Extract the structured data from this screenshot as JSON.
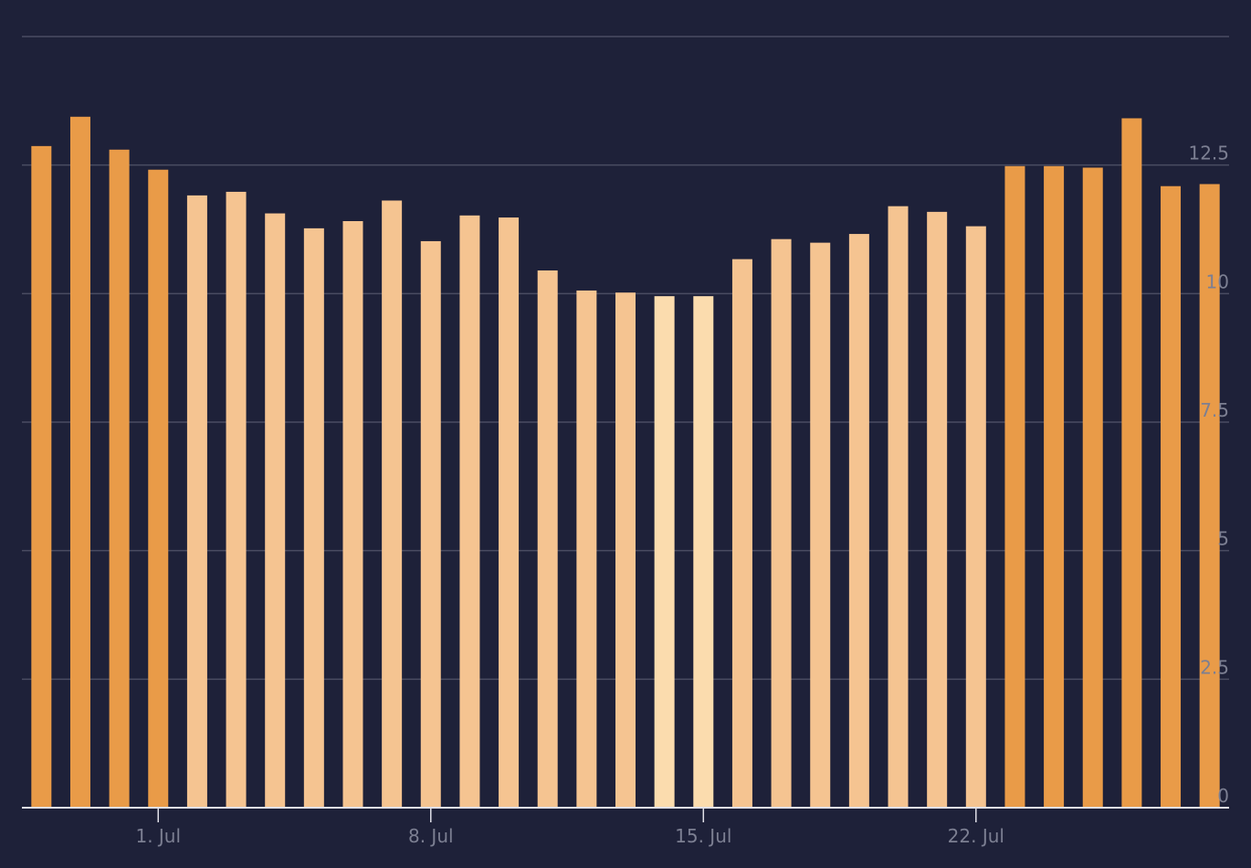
{
  "chart_data": {
    "type": "bar",
    "categories": [
      null,
      null,
      null,
      "1. Jul",
      null,
      null,
      null,
      null,
      null,
      null,
      "8. Jul",
      null,
      null,
      null,
      null,
      null,
      null,
      "15. Jul",
      null,
      null,
      null,
      null,
      null,
      null,
      "22. Jul",
      null,
      null,
      null,
      null,
      null,
      null
    ],
    "values": [
      12.87,
      13.44,
      12.8,
      12.41,
      11.91,
      11.98,
      11.56,
      11.27,
      11.41,
      11.81,
      11.02,
      11.52,
      11.48,
      10.45,
      10.06,
      10.02,
      9.95,
      9.95,
      10.67,
      11.06,
      10.99,
      11.16,
      11.7,
      11.59,
      11.31,
      12.48,
      12.48,
      12.45,
      13.41,
      12.09,
      12.13
    ],
    "colors": [
      "#e99b48",
      "#e99b48",
      "#e99b48",
      "#e99b48",
      "#f5c491",
      "#f5c491",
      "#f5c491",
      "#f5c491",
      "#f5c491",
      "#f5c491",
      "#f5c491",
      "#f5c491",
      "#f5c491",
      "#f5c491",
      "#f5c491",
      "#f5c491",
      "#fbdcae",
      "#fbdcae",
      "#f5c491",
      "#f5c491",
      "#f5c491",
      "#f5c491",
      "#f5c491",
      "#f5c491",
      "#f5c491",
      "#e99b48",
      "#e99b48",
      "#e99b48",
      "#e99b48",
      "#e99b48",
      "#e99b48"
    ],
    "ylim": [
      0,
      15
    ],
    "yticks": [
      0,
      2.5,
      5,
      7.5,
      10,
      12.5
    ],
    "grid": true
  }
}
